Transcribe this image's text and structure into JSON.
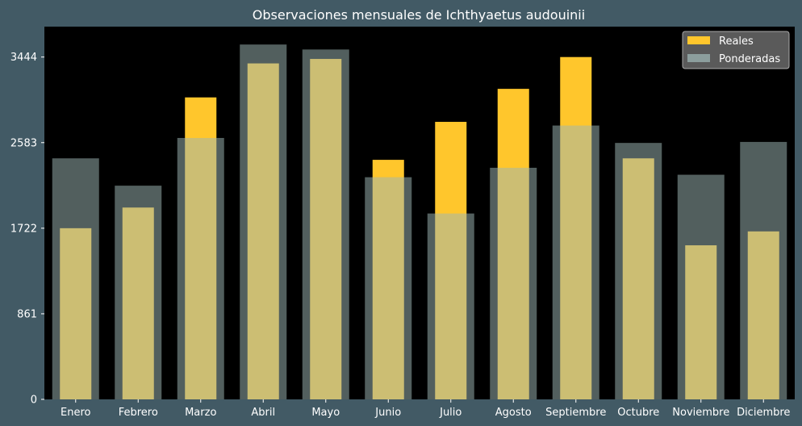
{
  "chart_data": {
    "type": "bar",
    "title": "Observaciones mensuales de Ichthyaetus audouinii",
    "xlabel": "",
    "ylabel": "",
    "categories": [
      "Enero",
      "Febrero",
      "Marzo",
      "Abril",
      "Mayo",
      "Junio",
      "Julio",
      "Agosto",
      "Septiembre",
      "Octubre",
      "Noviembre",
      "Diciembre"
    ],
    "series": [
      {
        "name": "Reales",
        "values": [
          1722,
          1930,
          3038,
          3380,
          3425,
          2410,
          2792,
          3124,
          3444,
          2425,
          1550,
          1690
        ]
      },
      {
        "name": "Ponderadas",
        "values": [
          2425,
          2150,
          2630,
          3570,
          3520,
          2235,
          1870,
          2330,
          2755,
          2580,
          2260,
          2590
        ]
      }
    ],
    "ylim": [
      0,
      3750
    ],
    "yticks": [
      {
        "value": 0,
        "label": "0"
      },
      {
        "value": 861,
        "label": "861"
      },
      {
        "value": 1722,
        "label": "1722"
      },
      {
        "value": 2583,
        "label": "2583"
      },
      {
        "value": 3444,
        "label": "3444"
      }
    ],
    "grid": false,
    "legend_position": "top-right",
    "colors": {
      "figure_background": "#425a65",
      "plot_background": "#000000",
      "reales": "#ffc62c",
      "ponderadas": "#9db6b4",
      "ponderadas_opacity": 0.52,
      "text": "#ffffff",
      "legend_background": "#5a5a5a",
      "legend_border": "#a9a9a9"
    }
  }
}
